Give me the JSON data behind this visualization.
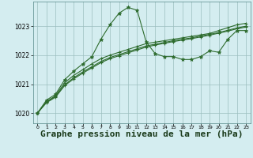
{
  "background_color": "#d4edf0",
  "grid_color": "#9bbfbf",
  "line_color": "#2d6b2d",
  "xlabel": "Graphe pression niveau de la mer (hPa)",
  "xlabel_fontsize": 8,
  "ylim": [
    1019.65,
    1023.85
  ],
  "xlim": [
    -0.5,
    23.5
  ],
  "yticks": [
    1020,
    1021,
    1022,
    1023
  ],
  "xticks": [
    0,
    1,
    2,
    3,
    4,
    5,
    6,
    7,
    8,
    9,
    10,
    11,
    12,
    13,
    14,
    15,
    16,
    17,
    18,
    19,
    20,
    21,
    22,
    23
  ],
  "series1_x": [
    0,
    1,
    2,
    3,
    4,
    5,
    6,
    7,
    8,
    9,
    10,
    11,
    12,
    13,
    14,
    15,
    16,
    17,
    18,
    19,
    20,
    21,
    22,
    23
  ],
  "series1_y": [
    1020.0,
    1020.45,
    1020.65,
    1021.15,
    1021.45,
    1021.7,
    1021.95,
    1022.55,
    1023.05,
    1023.45,
    1023.65,
    1023.55,
    1022.45,
    1022.05,
    1021.95,
    1021.95,
    1021.85,
    1021.85,
    1021.95,
    1022.15,
    1022.1,
    1022.55,
    1022.85,
    1022.85
  ],
  "series2_x": [
    0,
    1,
    2,
    3,
    4,
    5,
    6,
    7,
    8,
    9,
    10,
    11,
    12,
    13,
    14,
    15,
    16,
    17,
    18,
    19,
    20,
    21,
    22,
    23
  ],
  "series2_y": [
    1020.0,
    1020.4,
    1020.6,
    1021.05,
    1021.3,
    1021.5,
    1021.7,
    1021.88,
    1022.0,
    1022.1,
    1022.2,
    1022.3,
    1022.4,
    1022.45,
    1022.5,
    1022.55,
    1022.6,
    1022.65,
    1022.7,
    1022.75,
    1022.85,
    1022.95,
    1023.05,
    1023.1
  ],
  "series3_x": [
    0,
    1,
    2,
    3,
    4,
    5,
    6,
    7,
    8,
    9,
    10,
    11,
    12,
    13,
    14,
    15,
    16,
    17,
    18,
    19,
    20,
    21,
    22,
    23
  ],
  "series3_y": [
    1020.0,
    1020.38,
    1020.58,
    1020.98,
    1021.22,
    1021.42,
    1021.6,
    1021.78,
    1021.92,
    1022.02,
    1022.12,
    1022.22,
    1022.32,
    1022.38,
    1022.44,
    1022.5,
    1022.55,
    1022.6,
    1022.66,
    1022.72,
    1022.78,
    1022.86,
    1022.94,
    1023.0
  ],
  "series4_x": [
    0,
    1,
    2,
    3,
    4,
    5,
    6,
    7,
    8,
    9,
    10,
    11,
    12,
    13,
    14,
    15,
    16,
    17,
    18,
    19,
    20,
    21,
    22,
    23
  ],
  "series4_y": [
    1020.0,
    1020.36,
    1020.55,
    1020.95,
    1021.18,
    1021.38,
    1021.56,
    1021.74,
    1021.88,
    1021.98,
    1022.08,
    1022.18,
    1022.28,
    1022.35,
    1022.41,
    1022.47,
    1022.52,
    1022.57,
    1022.63,
    1022.69,
    1022.76,
    1022.83,
    1022.91,
    1022.97
  ]
}
